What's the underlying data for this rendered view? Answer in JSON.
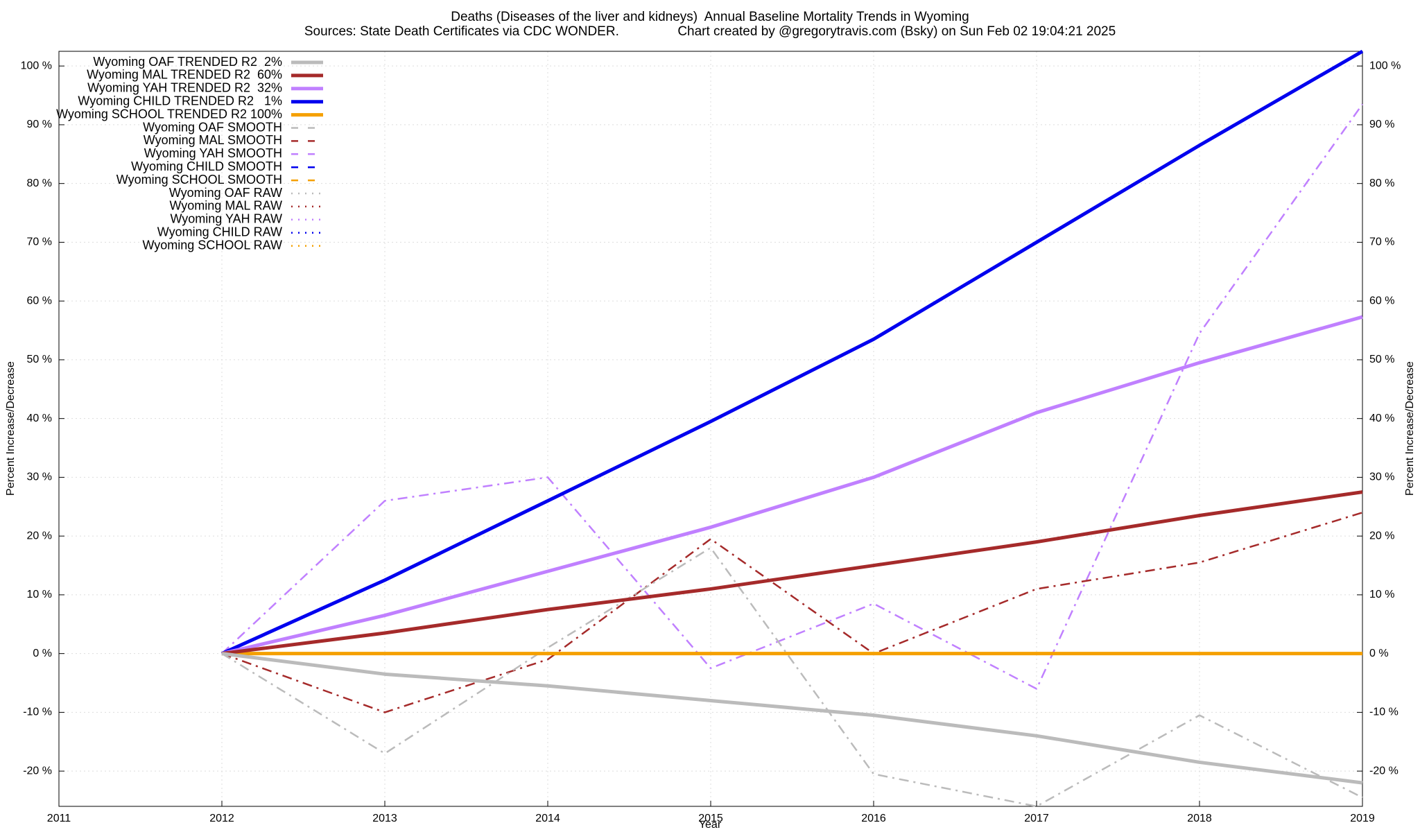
{
  "chart_data": {
    "type": "line",
    "title": "Deaths (Diseases of the liver and kidneys)  Annual Baseline Mortality Trends in Wyoming",
    "subtitle": "Sources: State Death Certificates via CDC WONDER.                Chart created by @gregorytravis.com (Bsky) on Sun Feb 02 19:04:21 2025",
    "xlabel": "Year",
    "ylabel": "Percent Increase/Decrease",
    "y2label": "Percent Increase/Decrease",
    "x": [
      2012,
      2013,
      2014,
      2015,
      2016,
      2017,
      2018,
      2019
    ],
    "xlim": [
      2011,
      2019
    ],
    "xticks": [
      2011,
      2012,
      2013,
      2014,
      2015,
      2016,
      2017,
      2018,
      2019
    ],
    "ylim": [
      -26,
      102.5
    ],
    "yticks": [
      {
        "value": -20,
        "label": "-20 %"
      },
      {
        "value": -10,
        "label": "-10 %"
      },
      {
        "value": 0,
        "label": "0 %"
      },
      {
        "value": 10,
        "label": "10 %"
      },
      {
        "value": 20,
        "label": "20 %"
      },
      {
        "value": 30,
        "label": "30 %"
      },
      {
        "value": 40,
        "label": "40 %"
      },
      {
        "value": 50,
        "label": "50 %"
      },
      {
        "value": 60,
        "label": "60 %"
      },
      {
        "value": 70,
        "label": "70 %"
      },
      {
        "value": 80,
        "label": "80 %"
      },
      {
        "value": 90,
        "label": "90 %"
      },
      {
        "value": 100,
        "label": "100 %"
      }
    ],
    "grid": true,
    "legend": "upper left",
    "series": [
      {
        "name": "Wyoming OAF TRENDED R2  2%",
        "color": "#bbbbbb",
        "style": "solid",
        "values": [
          0,
          -3.5,
          -5.5,
          -8,
          -10.5,
          -14,
          -18.5,
          -22
        ]
      },
      {
        "name": "Wyoming MAL TRENDED R2  60%",
        "color": "#a52a2a",
        "style": "solid",
        "values": [
          0,
          3.5,
          7.5,
          11,
          15,
          19,
          23.5,
          27.5
        ]
      },
      {
        "name": "Wyoming YAH TRENDED R2  32%",
        "color": "#c080ff",
        "style": "solid",
        "values": [
          0,
          6.5,
          14,
          21.5,
          30,
          41,
          49.5,
          57.3
        ]
      },
      {
        "name": "Wyoming CHILD TRENDED R2   1%",
        "color": "#0000ee",
        "style": "solid",
        "values": [
          0,
          12.5,
          26,
          39.5,
          53.5,
          70,
          86.5,
          102.5
        ]
      },
      {
        "name": "Wyoming SCHOOL TRENDED R2 100%",
        "color": "#f5a000",
        "style": "solid",
        "values": [
          0,
          0,
          0,
          0,
          0,
          0,
          0,
          0
        ]
      },
      {
        "name": "Wyoming OAF SMOOTH",
        "color": "#bbbbbb",
        "style": "dashdot",
        "values": [
          0,
          -17,
          1,
          18,
          -20.5,
          -26,
          -10.5,
          -24.5
        ]
      },
      {
        "name": "Wyoming MAL SMOOTH",
        "color": "#a52a2a",
        "style": "dashdot",
        "values": [
          0,
          -10,
          -1,
          19.5,
          0,
          11,
          15.5,
          24
        ]
      },
      {
        "name": "Wyoming YAH SMOOTH",
        "color": "#c080ff",
        "style": "dashdot",
        "values": [
          0,
          26,
          30,
          -2.5,
          8.5,
          -6,
          54.5,
          93.5
        ]
      },
      {
        "name": "Wyoming CHILD SMOOTH",
        "color": "#0000ee",
        "style": "dashdot",
        "values": [
          null,
          null,
          null,
          null,
          null,
          null,
          null,
          null
        ]
      },
      {
        "name": "Wyoming SCHOOL SMOOTH",
        "color": "#f5a000",
        "style": "dashdot",
        "values": [
          null,
          null,
          null,
          null,
          null,
          null,
          null,
          null
        ]
      },
      {
        "name": "Wyoming OAF RAW",
        "color": "#bbbbbb",
        "style": "dotted",
        "values": [
          null,
          null,
          null,
          null,
          null,
          null,
          null,
          null
        ]
      },
      {
        "name": "Wyoming MAL RAW",
        "color": "#a52a2a",
        "style": "dotted",
        "values": [
          null,
          null,
          null,
          null,
          null,
          null,
          null,
          null
        ]
      },
      {
        "name": "Wyoming YAH RAW",
        "color": "#c080ff",
        "style": "dotted",
        "values": [
          null,
          null,
          null,
          null,
          null,
          null,
          null,
          null
        ]
      },
      {
        "name": "Wyoming CHILD RAW",
        "color": "#0000ee",
        "style": "dotted",
        "values": [
          null,
          null,
          null,
          null,
          null,
          null,
          null,
          null
        ]
      },
      {
        "name": "Wyoming SCHOOL RAW",
        "color": "#f5a000",
        "style": "dotted",
        "values": [
          null,
          null,
          null,
          null,
          null,
          null,
          null,
          null
        ]
      }
    ]
  }
}
